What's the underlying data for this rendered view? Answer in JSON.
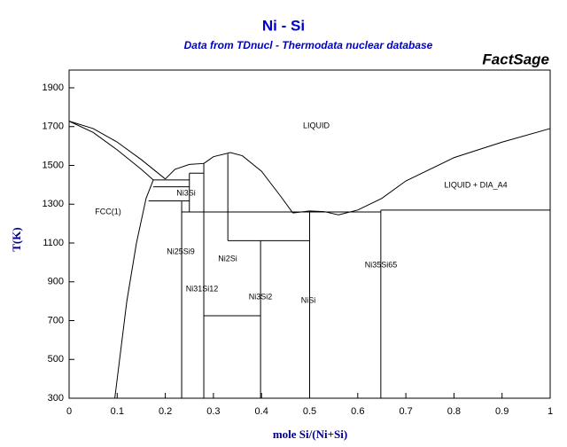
{
  "chart_data": {
    "type": "line",
    "title": "Ni - Si",
    "subtitle": "Data from TDnucl - Thermodata nuclear database",
    "brand": "FactSage",
    "x_label": "mole Si/(Ni+Si)",
    "y_label": "T(K)",
    "xlim": [
      0,
      1
    ],
    "ylim": [
      300,
      1900
    ],
    "xticks": [
      0,
      0.1,
      0.2,
      0.3,
      0.4,
      0.5,
      0.6,
      0.7,
      0.8,
      0.9,
      1
    ],
    "yticks": [
      300,
      500,
      700,
      900,
      1100,
      1300,
      1500,
      1700,
      1900
    ],
    "color": "#000000",
    "annotations": [
      "LIQUID",
      "LIQUID + DIA_A4",
      "FCC(1)",
      "Ni3Si",
      "Ni25Si9",
      "Ni2Si",
      "Ni31Si12",
      "Ni3Si2",
      "NiSi",
      "Ni35Si65"
    ],
    "series": [
      {
        "x": [
          0,
          0.05,
          0.1,
          0.15,
          0.2
        ],
        "values": [
          1728,
          1690,
          1620,
          1530,
          1430
        ]
      },
      {
        "x": [
          0,
          0.05,
          0.1,
          0.15,
          0.175
        ],
        "values": [
          1728,
          1670,
          1580,
          1480,
          1425
        ]
      },
      {
        "x": [
          0.175,
          0.16,
          0.14,
          0.12,
          0.105,
          0.095
        ],
        "values": [
          1425,
          1330,
          1100,
          800,
          500,
          300
        ]
      },
      {
        "x": [
          0.2,
          0.22,
          0.25,
          0.28
        ],
        "values": [
          1430,
          1480,
          1505,
          1510
        ]
      },
      {
        "x": [
          0.28,
          0.3,
          0.335,
          0.36,
          0.4,
          0.44,
          0.465
        ],
        "values": [
          1510,
          1545,
          1566,
          1550,
          1470,
          1340,
          1255
        ]
      },
      {
        "x": [
          0.465,
          0.5,
          0.53,
          0.56
        ],
        "values": [
          1255,
          1265,
          1262,
          1245
        ]
      },
      {
        "x": [
          0.56,
          0.6,
          0.65,
          0.7,
          0.8,
          0.9,
          1
        ],
        "values": [
          1245,
          1270,
          1330,
          1420,
          1540,
          1620,
          1690
        ]
      },
      {
        "x": [
          0.175,
          0.25
        ],
        "values": [
          1425,
          1425
        ]
      },
      {
        "x": [
          0.175,
          0.25
        ],
        "values": [
          1390,
          1390
        ]
      },
      {
        "x": [
          0.165,
          0.25
        ],
        "values": [
          1317,
          1317
        ]
      },
      {
        "x": [
          0.25,
          0.28
        ],
        "values": [
          1460,
          1460
        ]
      },
      {
        "x": [
          0.234,
          0.234
        ],
        "values": [
          300,
          1317
        ]
      },
      {
        "x": [
          0.25,
          0.25
        ],
        "values": [
          1260,
          1460
        ]
      },
      {
        "x": [
          0.28,
          0.28
        ],
        "values": [
          300,
          1510
        ]
      },
      {
        "x": [
          0.33,
          0.33
        ],
        "values": [
          1112,
          1560
        ]
      },
      {
        "x": [
          0.398,
          0.398
        ],
        "values": [
          300,
          1112
        ]
      },
      {
        "x": [
          0.5,
          0.5
        ],
        "values": [
          300,
          1260
        ]
      },
      {
        "x": [
          0.648,
          0.648
        ],
        "values": [
          300,
          1270
        ]
      },
      {
        "x": [
          0.234,
          0.648
        ],
        "values": [
          1260,
          1260
        ]
      },
      {
        "x": [
          0.648,
          1
        ],
        "values": [
          1270,
          1270
        ]
      },
      {
        "x": [
          0.33,
          0.5
        ],
        "values": [
          1112,
          1112
        ]
      },
      {
        "x": [
          0.28,
          0.398
        ],
        "values": [
          725,
          725
        ]
      }
    ]
  }
}
